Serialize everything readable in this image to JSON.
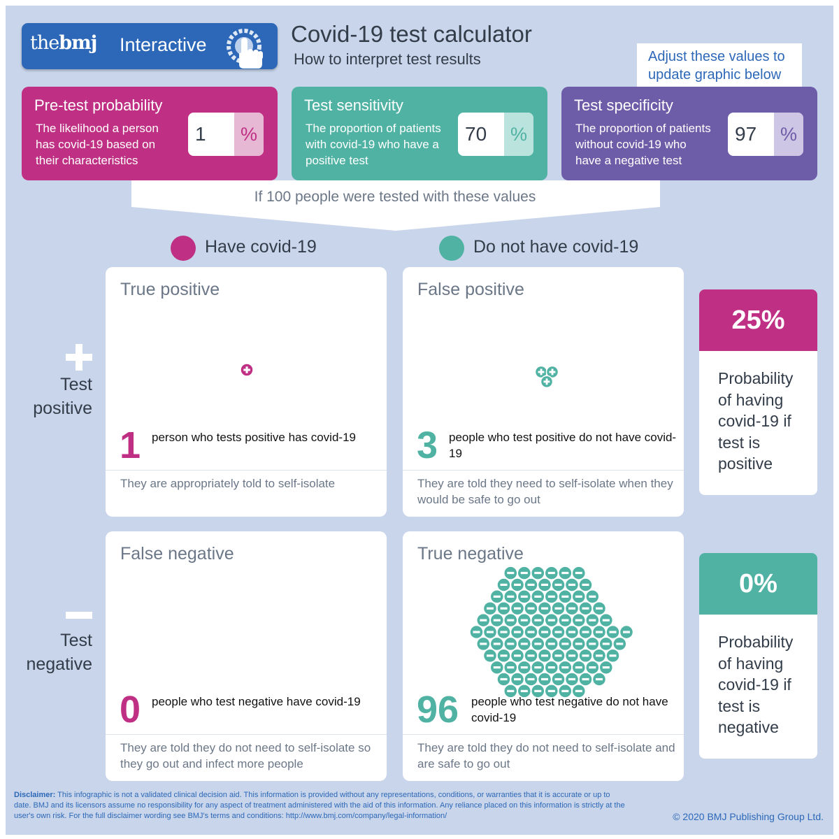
{
  "header": {
    "logo_the": "the",
    "logo_bmj": "bmj",
    "logo_interactive": "Interactive",
    "title": "Covid-19 test calculator",
    "subtitle": "How to interpret test results",
    "callout": "Adjust these values to update graphic below"
  },
  "params": [
    {
      "title": "Pre-test probability",
      "desc": "The likelihood a person has covid-19 based on their characteristics",
      "value": "1",
      "unit": "%"
    },
    {
      "title": "Test sensitivity",
      "desc": "The proportion of patients with covid-19 who have a positive test",
      "value": "70",
      "unit": "%"
    },
    {
      "title": "Test specificity",
      "desc": "The proportion of patients without covid-19 who have a negative test",
      "value": "97",
      "unit": "%"
    }
  ],
  "summary": "If 100 people were tested with these values",
  "legend": {
    "have": "Have covid-19",
    "have_not": "Do not have covid-19"
  },
  "rows": {
    "positive": "Test positive",
    "negative": "Test negative"
  },
  "quadrants": {
    "tp": {
      "title": "True positive",
      "count": "1",
      "count_value": 1,
      "text": "person who tests positive has covid-19",
      "foot": "They are appropriately told to self-isolate"
    },
    "fp": {
      "title": "False positive",
      "count": "3",
      "count_value": 3,
      "text": "people who test positive do not have covid-19",
      "foot": "They are told they need to self-isolate when they would be safe to go out"
    },
    "fn": {
      "title": "False negative",
      "count": "0",
      "count_value": 0,
      "text": "people who test negative have covid-19",
      "foot": "They are told they do not need to self-isolate so they go out and infect more people"
    },
    "tn": {
      "title": "True negative",
      "count": "96",
      "count_value": 96,
      "text": "people who test negative do not have covid-19",
      "foot": "They are told they do not need to self-isolate and are safe to go out"
    }
  },
  "probabilities": {
    "positive": {
      "value": "25%",
      "text": "Probability of having covid-19 if test is positive"
    },
    "negative": {
      "value": "0%",
      "text": "Probability of having covid-19 if test is negative"
    }
  },
  "disclaimer": {
    "label": "Disclaimer:",
    "text": "This infographic is not a validated clinical decision aid. This information is provided without any representations, conditions, or warranties that it is accurate or up to date. BMJ and its licensors assume no responsibility for any aspect of treatment administered with the aid of this information. Any reliance placed on this information is strictly at the user's own risk. For the full disclaimer wording see BMJ's terms and conditions: http://www.bmj.com/company/legal-information/"
  },
  "copyright": "© 2020 BMJ Publishing Group Ltd.",
  "colors": {
    "magenta": "#bf2f83",
    "teal": "#4fb2a3",
    "purple": "#6d5da8",
    "blue": "#2d68b8",
    "background": "#c8d5ea"
  }
}
